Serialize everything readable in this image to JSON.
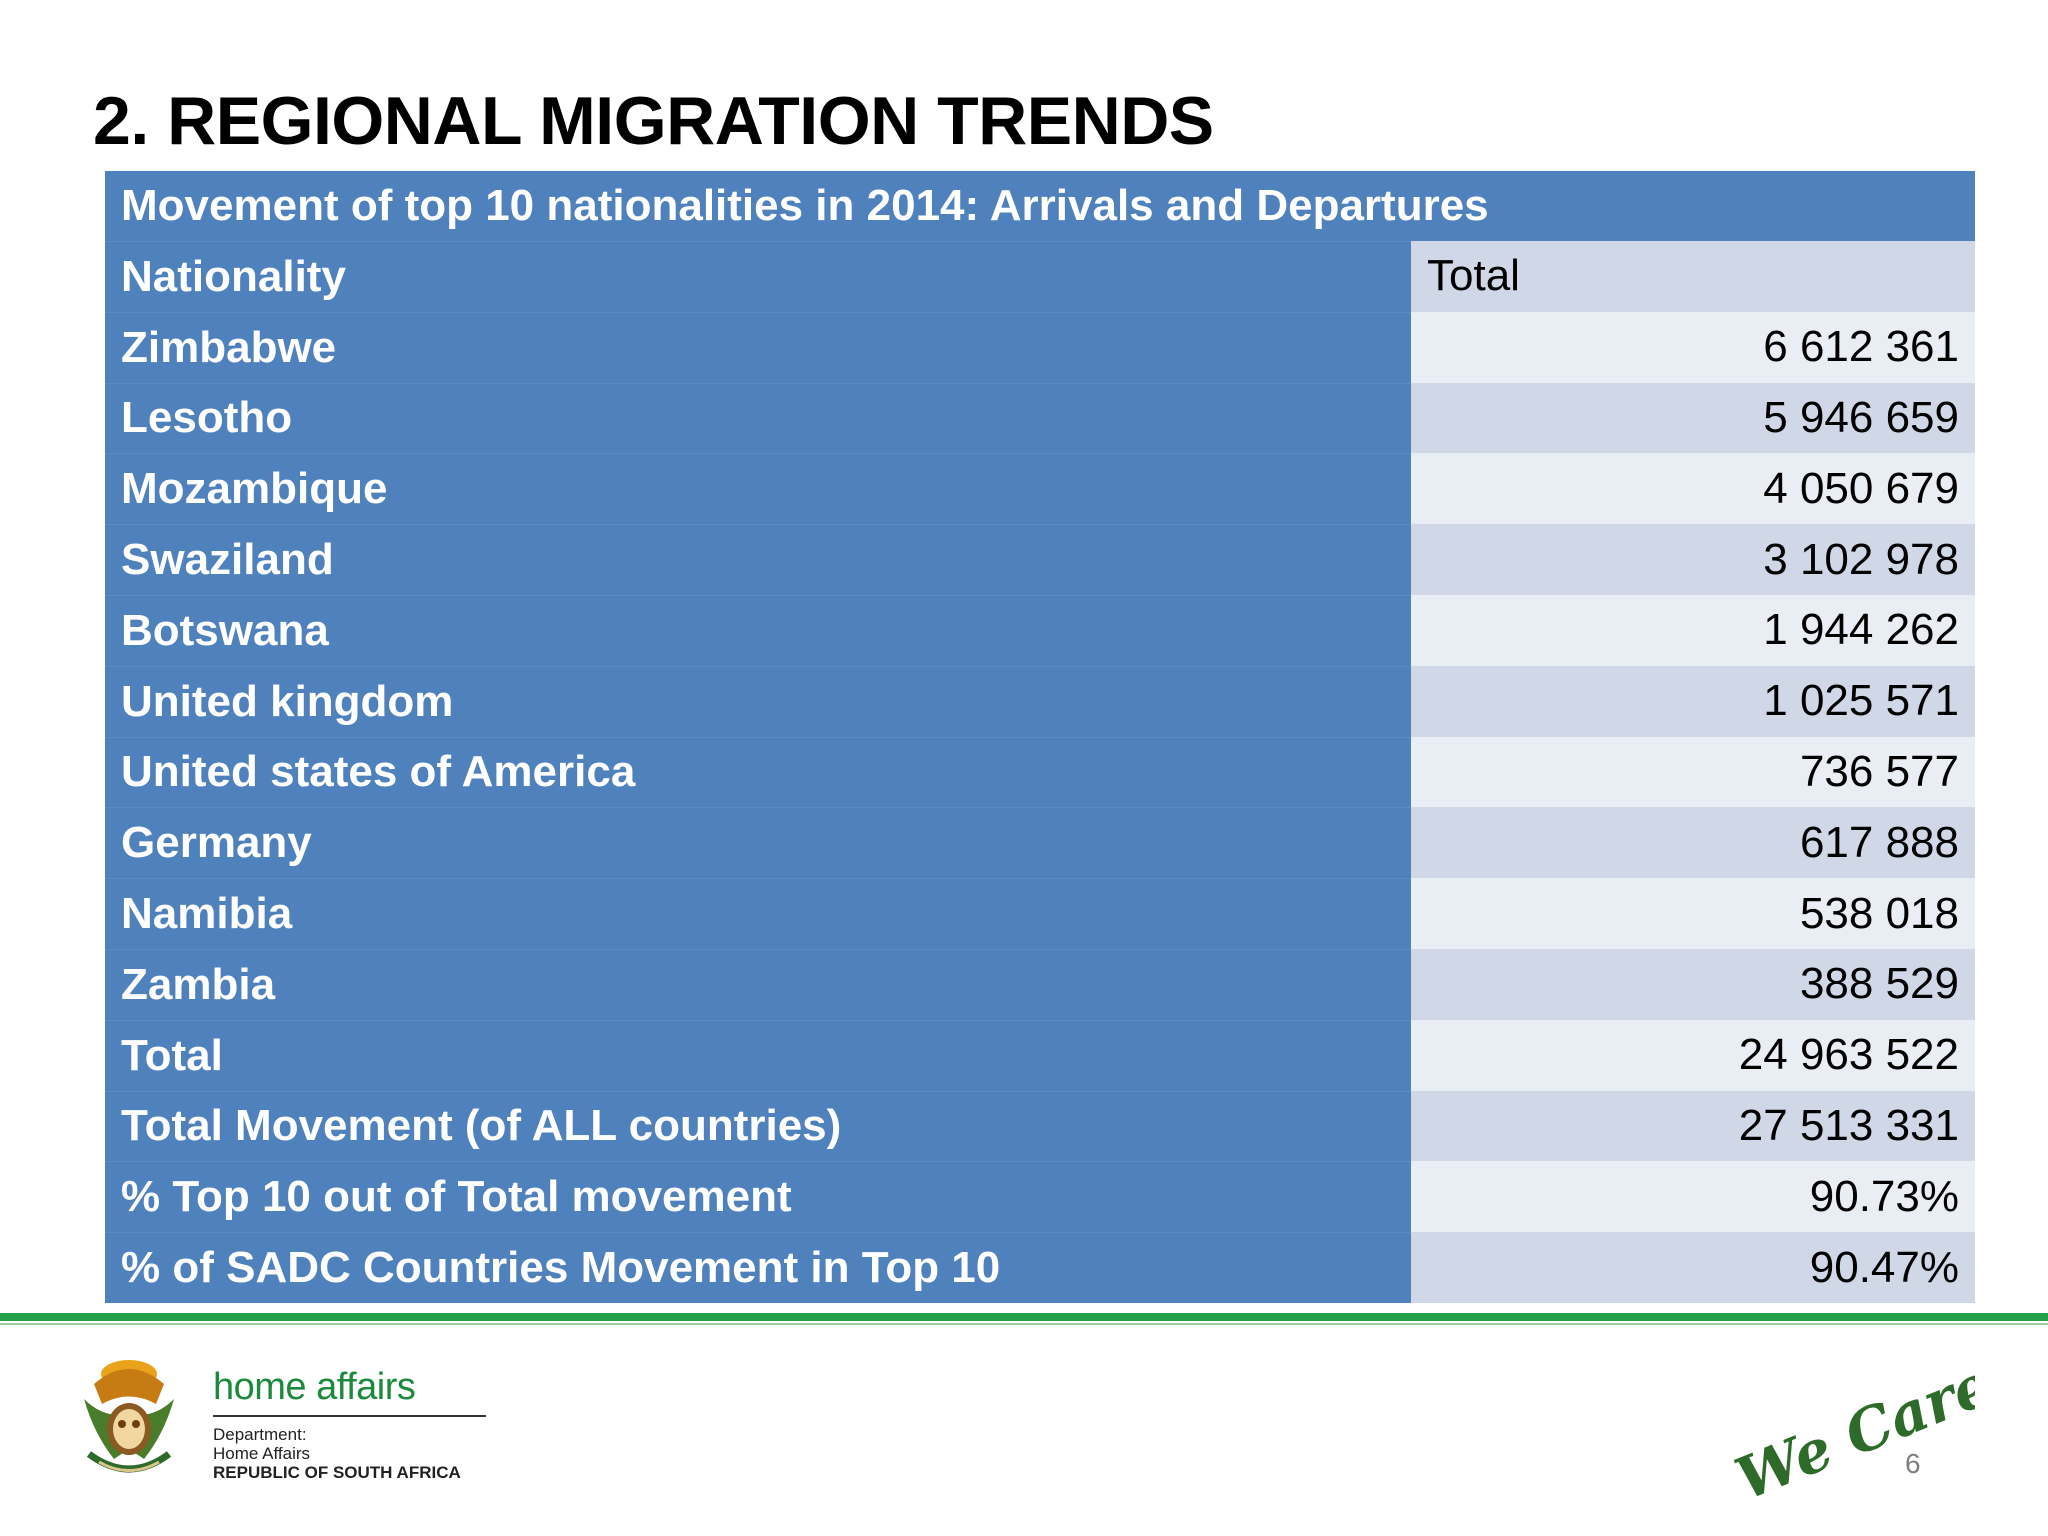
{
  "slide": {
    "title": "2. REGIONAL MIGRATION TRENDS",
    "page_number": "6"
  },
  "table": {
    "caption": "Movement of top 10 nationalities in 2014: Arrivals and Departures",
    "header": {
      "label": "Nationality",
      "value": "Total"
    },
    "rows": [
      {
        "label": "Zimbabwe",
        "value": "6 612 361"
      },
      {
        "label": "Lesotho",
        "value": "5 946 659"
      },
      {
        "label": "Mozambique",
        "value": "4 050 679"
      },
      {
        "label": "Swaziland",
        "value": "3 102 978"
      },
      {
        "label": "Botswana",
        "value": "1 944 262"
      },
      {
        "label": "United kingdom",
        "value": "1 025 571"
      },
      {
        "label": "United states of America",
        "value": "736 577"
      },
      {
        "label": "Germany",
        "value": "617 888"
      },
      {
        "label": "Namibia",
        "value": "538 018"
      },
      {
        "label": "Zambia",
        "value": "388 529"
      },
      {
        "label": "Total",
        "value": "24 963 522"
      },
      {
        "label": "Total Movement (of ALL countries)",
        "value": "27 513 331"
      },
      {
        "label": "% Top 10 out of Total movement",
        "value": "90.73%"
      },
      {
        "label": "% of SADC Countries Movement in Top 10",
        "value": "90.47%"
      }
    ]
  },
  "footer": {
    "brand_name": "home affairs",
    "dept_line1": "Department:",
    "dept_line2": "Home Affairs",
    "country": "REPUBLIC OF SOUTH AFRICA",
    "slogan": "We Care!",
    "accent_color": "#24a148",
    "table_color": "#4f81bd"
  }
}
